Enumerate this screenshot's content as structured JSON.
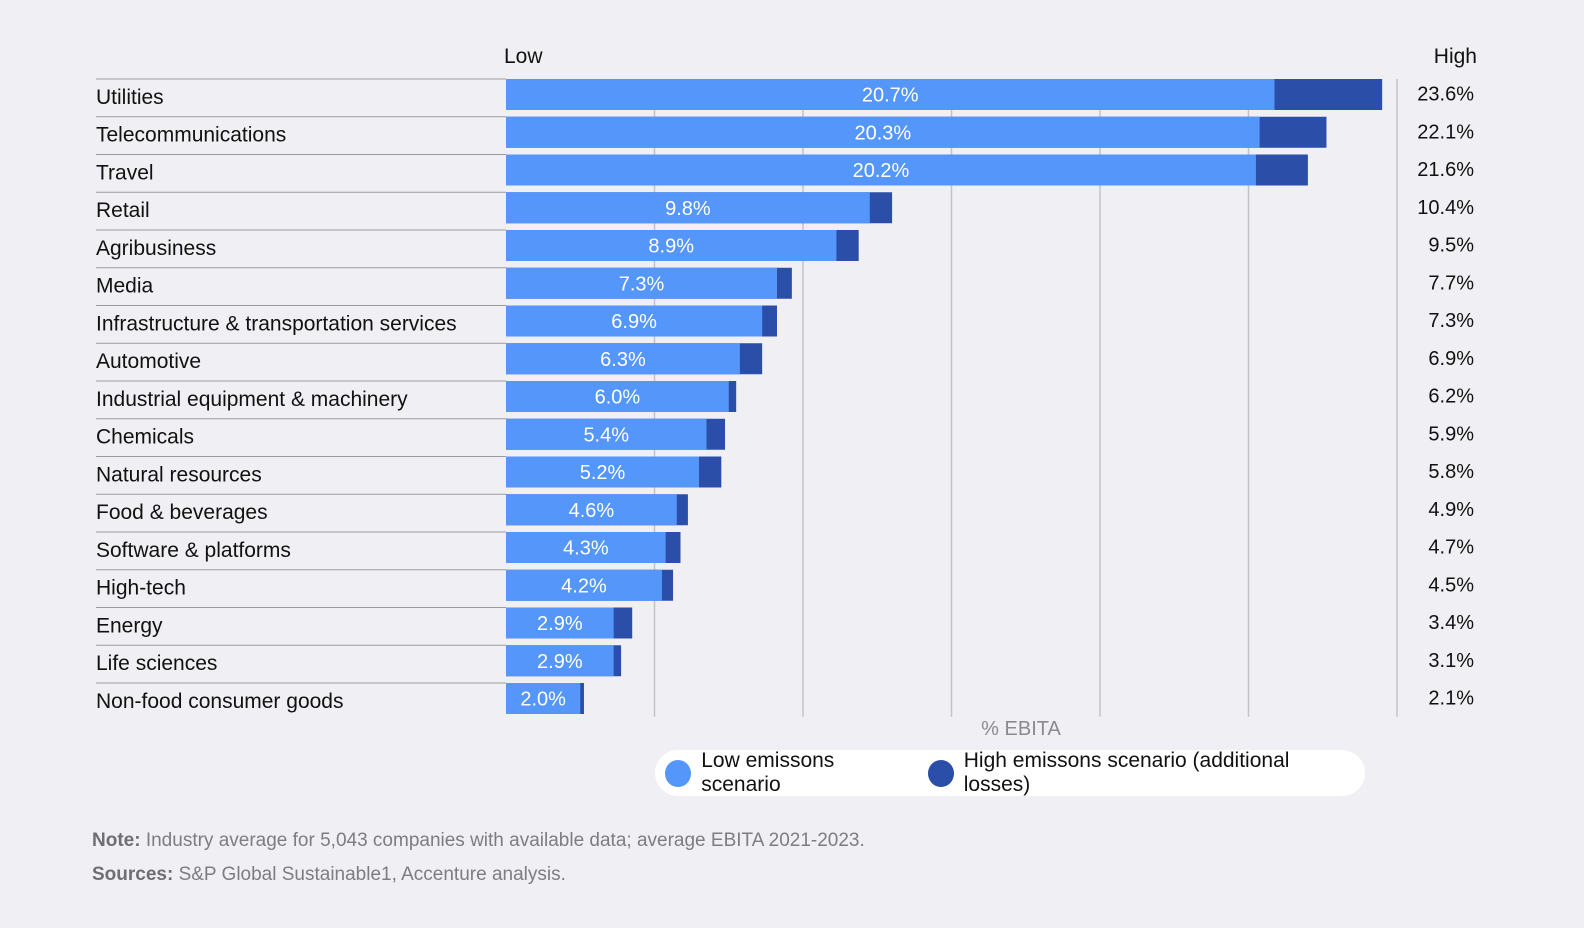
{
  "header": {
    "low_label": "Low",
    "high_label": "High"
  },
  "colors": {
    "low": "#5596fa",
    "high": "#2b4ea8",
    "grid": "#c2c2c8",
    "row_line": "#9a9aa0"
  },
  "chart_data": {
    "type": "bar",
    "orientation": "horizontal",
    "stacked": true,
    "categories": [
      "Utilities",
      "Telecommunications",
      "Travel",
      "Retail",
      "Agribusiness",
      "Media",
      "Infrastructure & transportation services",
      "Automotive",
      "Industrial equipment & machinery",
      "Chemicals",
      "Natural resources",
      "Food & beverages",
      "Software & platforms",
      "High-tech",
      "Energy",
      "Life sciences",
      "Non-food consumer goods"
    ],
    "series": [
      {
        "name": "Low emissons scenario",
        "values": [
          20.7,
          20.3,
          20.2,
          9.8,
          8.9,
          7.3,
          6.9,
          6.3,
          6.0,
          5.4,
          5.2,
          4.6,
          4.3,
          4.2,
          2.9,
          2.9,
          2.0
        ],
        "labels": [
          "20.7%",
          "20.3%",
          "20.2%",
          "9.8%",
          "8.9%",
          "7.3%",
          "6.9%",
          "6.3%",
          "6.0%",
          "5.4%",
          "5.2%",
          "4.6%",
          "4.3%",
          "4.2%",
          "2.9%",
          "2.9%",
          "2.0%"
        ]
      },
      {
        "name": "High emissons scenario (additional losses)",
        "totals": [
          23.6,
          22.1,
          21.6,
          10.4,
          9.5,
          7.7,
          7.3,
          6.9,
          6.2,
          5.9,
          5.8,
          4.9,
          4.7,
          4.5,
          3.4,
          3.1,
          2.1
        ],
        "total_labels": [
          "23.6%",
          "22.1%",
          "21.6%",
          "10.4%",
          "9.5%",
          "7.7%",
          "7.3%",
          "6.9%",
          "6.2%",
          "5.9%",
          "5.8%",
          "4.9%",
          "4.7%",
          "4.5%",
          "3.4%",
          "3.1%",
          "2.1%"
        ]
      }
    ],
    "xlabel": "% EBITA",
    "xlim": [
      0,
      24
    ],
    "gridlines": [
      0,
      4,
      8,
      12,
      16,
      20,
      24
    ],
    "grid": true,
    "legend_position": "bottom-right"
  },
  "legend": {
    "low": "Low emissons scenario",
    "high": "High emissons scenario (additional losses)"
  },
  "notes": {
    "note_label": "Note:",
    "note_text": " Industry average for 5,043 companies with available data; average EBITA 2021-2023.",
    "sources_label": "Sources:",
    "sources_text": " S&P Global Sustainable1, Accenture analysis."
  }
}
